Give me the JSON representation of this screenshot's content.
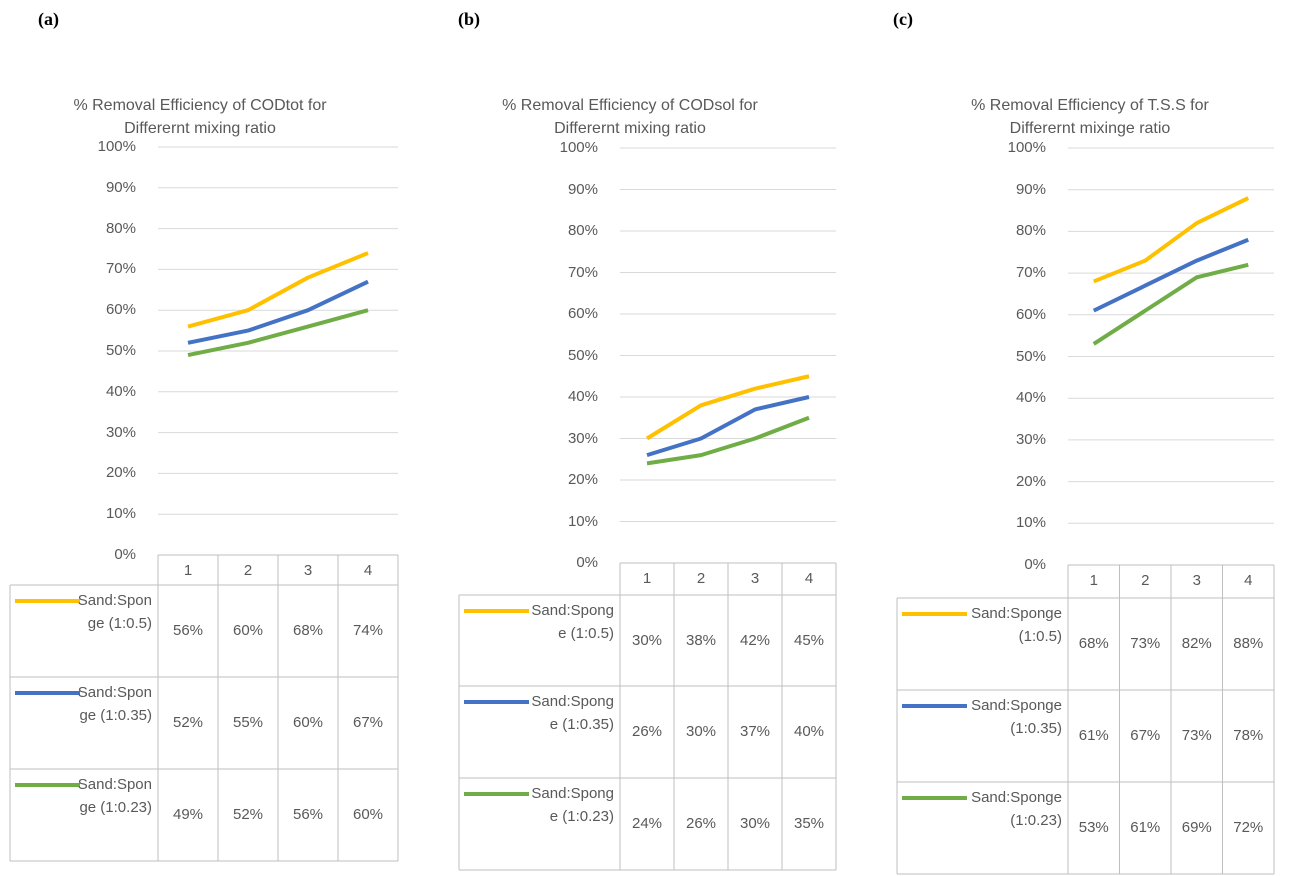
{
  "chart_data": [
    {
      "type": "line",
      "panel_label": "(a)",
      "title": "% Removal Efficiency of CODtot for Differernt mixing ratio",
      "categories": [
        "1",
        "2",
        "3",
        "4"
      ],
      "series": [
        {
          "name": "Sand:Sponge (1:0.5)",
          "color": "#ffc000",
          "values": [
            56,
            60,
            68,
            74
          ],
          "value_labels": [
            "56%",
            "60%",
            "68%",
            "74%"
          ]
        },
        {
          "name": "Sand:Sponge (1:0.35)",
          "color": "#4472c4",
          "values": [
            52,
            55,
            60,
            67
          ],
          "value_labels": [
            "52%",
            "55%",
            "60%",
            "67%"
          ]
        },
        {
          "name": "Sand:Sponge (1:0.23)",
          "color": "#70ad47",
          "values": [
            49,
            52,
            56,
            60
          ],
          "value_labels": [
            "49%",
            "52%",
            "56%",
            "60%"
          ]
        }
      ],
      "ylim": [
        0,
        100
      ],
      "yticks": [
        {
          "value": 0,
          "label": "0%"
        },
        {
          "value": 10,
          "label": "10%"
        },
        {
          "value": 20,
          "label": "20%"
        },
        {
          "value": 30,
          "label": "30%"
        },
        {
          "value": 40,
          "label": "40%"
        },
        {
          "value": 50,
          "label": "50%"
        },
        {
          "value": 60,
          "label": "60%"
        },
        {
          "value": 70,
          "label": "70%"
        },
        {
          "value": 80,
          "label": "80%"
        },
        {
          "value": 90,
          "label": "90%"
        },
        {
          "value": 100,
          "label": "100%"
        }
      ],
      "grid": true
    },
    {
      "type": "line",
      "panel_label": "(b)",
      "title": "% Removal Efficiency of CODsol for Differernt mixing ratio",
      "categories": [
        "1",
        "2",
        "3",
        "4"
      ],
      "series": [
        {
          "name": "Sand:Sponge (1:0.5)",
          "color": "#ffc000",
          "values": [
            30,
            38,
            42,
            45
          ],
          "value_labels": [
            "30%",
            "38%",
            "42%",
            "45%"
          ]
        },
        {
          "name": "Sand:Sponge (1:0.35)",
          "color": "#4472c4",
          "values": [
            26,
            30,
            37,
            40
          ],
          "value_labels": [
            "26%",
            "30%",
            "37%",
            "40%"
          ]
        },
        {
          "name": "Sand:Sponge (1:0.23)",
          "color": "#70ad47",
          "values": [
            24,
            26,
            30,
            35
          ],
          "value_labels": [
            "24%",
            "26%",
            "30%",
            "35%"
          ]
        }
      ],
      "ylim": [
        0,
        100
      ],
      "yticks": [
        {
          "value": 0,
          "label": "0%"
        },
        {
          "value": 10,
          "label": "10%"
        },
        {
          "value": 20,
          "label": "20%"
        },
        {
          "value": 30,
          "label": "30%"
        },
        {
          "value": 40,
          "label": "40%"
        },
        {
          "value": 50,
          "label": "50%"
        },
        {
          "value": 60,
          "label": "60%"
        },
        {
          "value": 70,
          "label": "70%"
        },
        {
          "value": 80,
          "label": "80%"
        },
        {
          "value": 90,
          "label": "90%"
        },
        {
          "value": 100,
          "label": "100%"
        }
      ],
      "grid": true
    },
    {
      "type": "line",
      "panel_label": "(c)",
      "title": "% Removal Efficiency of T.S.S for Differernt mixinge ratio",
      "categories": [
        "1",
        "2",
        "3",
        "4"
      ],
      "series": [
        {
          "name": "Sand:Sponge (1:0.5)",
          "color": "#ffc000",
          "values": [
            68,
            73,
            82,
            88
          ],
          "value_labels": [
            "68%",
            "73%",
            "82%",
            "88%"
          ]
        },
        {
          "name": "Sand:Sponge (1:0.35)",
          "color": "#4472c4",
          "values": [
            61,
            67,
            73,
            78
          ],
          "value_labels": [
            "61%",
            "67%",
            "73%",
            "78%"
          ]
        },
        {
          "name": "Sand:Sponge (1:0.23)",
          "color": "#70ad47",
          "values": [
            53,
            61,
            69,
            72
          ],
          "value_labels": [
            "53%",
            "61%",
            "69%",
            "72%"
          ]
        }
      ],
      "ylim": [
        0,
        100
      ],
      "yticks": [
        {
          "value": 0,
          "label": "0%"
        },
        {
          "value": 10,
          "label": "10%"
        },
        {
          "value": 20,
          "label": "20%"
        },
        {
          "value": 30,
          "label": "30%"
        },
        {
          "value": 40,
          "label": "40%"
        },
        {
          "value": 50,
          "label": "50%"
        },
        {
          "value": 60,
          "label": "60%"
        },
        {
          "value": 70,
          "label": "70%"
        },
        {
          "value": 80,
          "label": "80%"
        },
        {
          "value": 90,
          "label": "90%"
        },
        {
          "value": 100,
          "label": "100%"
        }
      ],
      "grid": true
    }
  ]
}
